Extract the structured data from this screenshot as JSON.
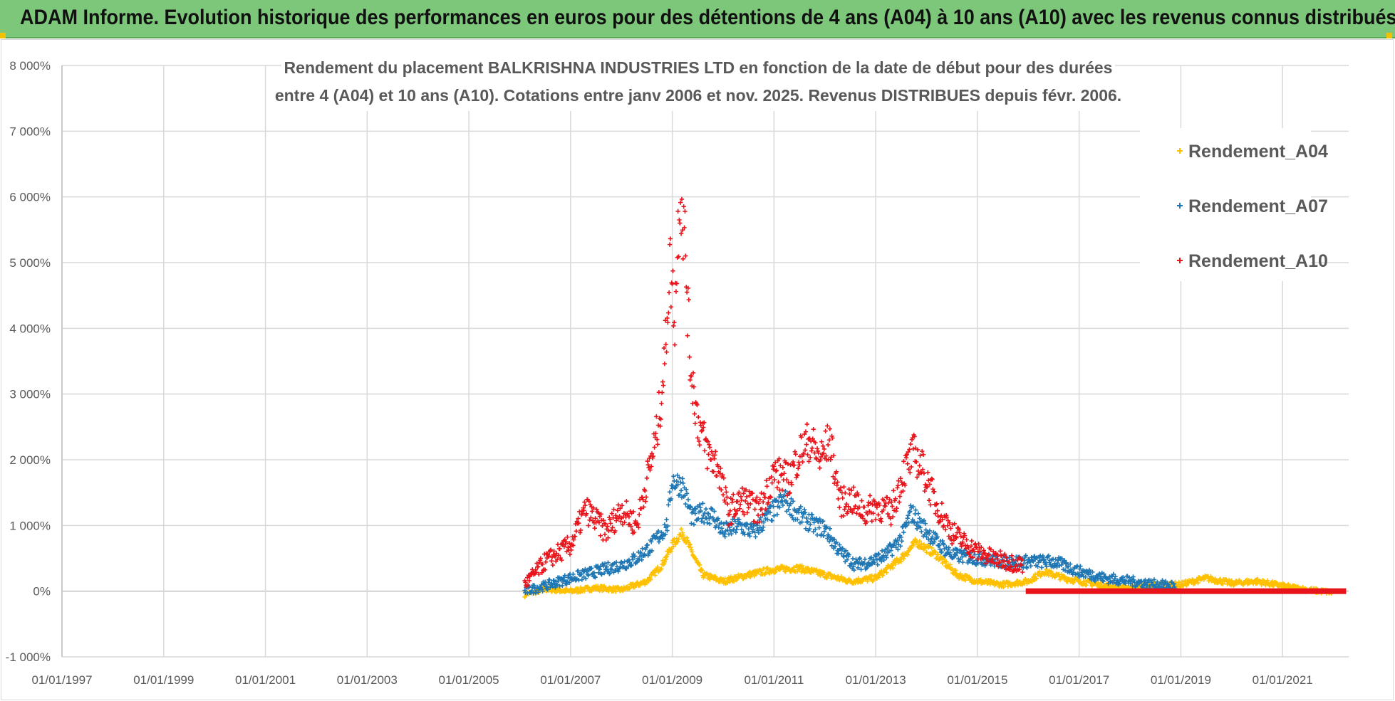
{
  "header": {
    "title": "ADAM Informe. Evolution historique des performances en euros pour des détentions de 4 ans (A04) à 10 ans (A10) avec les revenus connus distribués"
  },
  "chart_data": {
    "type": "scatter",
    "title_line1": "Rendement du placement BALKRISHNA INDUSTRIES LTD en fonction de la date de début pour des durées",
    "title_line2": "entre 4 (A04) et 10 ans (A10). Cotations entre janv 2006 et nov. 2025. Revenus DISTRIBUES depuis févr. 2006.",
    "xlabel": "",
    "ylabel": "",
    "xlim": [
      1997.0,
      2022.3
    ],
    "ylim": [
      -1000,
      8000
    ],
    "y_ticks": [
      -1000,
      0,
      1000,
      2000,
      3000,
      4000,
      5000,
      6000,
      7000,
      8000
    ],
    "y_tick_labels": [
      "-1 000%",
      "0%",
      "1 000%",
      "2 000%",
      "3 000%",
      "4 000%",
      "5 000%",
      "6 000%",
      "7 000%",
      "8 000%"
    ],
    "x_ticks": [
      1997,
      1999,
      2001,
      2003,
      2005,
      2007,
      2009,
      2011,
      2013,
      2015,
      2017,
      2019,
      2021
    ],
    "x_tick_labels": [
      "01/01/1997",
      "01/01/1999",
      "01/01/2001",
      "01/01/2003",
      "01/01/2005",
      "01/01/2007",
      "01/01/2009",
      "01/01/2011",
      "01/01/2013",
      "01/01/2015",
      "01/01/2017",
      "01/01/2019",
      "01/01/2021"
    ],
    "grid": true,
    "legend_position": "top-right",
    "marker": "+",
    "series": [
      {
        "name": "Rendement_A04",
        "color": "#ffc000",
        "x": [
          2006.1,
          2006.5,
          2007.0,
          2007.5,
          2008.0,
          2008.5,
          2008.8,
          2009.0,
          2009.2,
          2009.35,
          2009.6,
          2010.0,
          2010.5,
          2011.0,
          2011.5,
          2012.0,
          2012.5,
          2013.0,
          2013.5,
          2013.8,
          2014.2,
          2014.6,
          2015.0,
          2015.5,
          2016.0,
          2016.3,
          2016.7,
          2017.0,
          2017.5,
          2018.0,
          2018.5,
          2019.0,
          2019.5,
          2020.0,
          2020.5,
          2021.0,
          2021.5,
          2022.0
        ],
        "y": [
          -50,
          30,
          0,
          50,
          20,
          150,
          400,
          700,
          900,
          650,
          250,
          150,
          250,
          330,
          350,
          250,
          150,
          200,
          500,
          750,
          550,
          250,
          150,
          100,
          150,
          300,
          200,
          150,
          80,
          50,
          100,
          100,
          200,
          120,
          150,
          80,
          20,
          -20
        ],
        "spread": 60
      },
      {
        "name": "Rendement_A07",
        "color": "#1f77b4",
        "x": [
          2006.1,
          2006.5,
          2007.0,
          2007.5,
          2008.0,
          2008.3,
          2008.6,
          2008.9,
          2009.0,
          2009.2,
          2009.4,
          2009.6,
          2009.8,
          2010.0,
          2010.3,
          2010.6,
          2010.9,
          2011.2,
          2011.5,
          2011.8,
          2012.0,
          2012.3,
          2012.6,
          2012.9,
          2013.2,
          2013.5,
          2013.7,
          2013.9,
          2014.2,
          2014.5,
          2015.0,
          2015.5,
          2016.0,
          2016.5,
          2017.0,
          2017.5,
          2018.0,
          2018.5,
          2018.9
        ],
        "y": [
          0,
          80,
          200,
          300,
          400,
          500,
          700,
          1000,
          1700,
          1600,
          1100,
          1200,
          1150,
          900,
          1000,
          900,
          1150,
          1400,
          1150,
          1000,
          950,
          600,
          400,
          450,
          550,
          800,
          1200,
          1000,
          750,
          550,
          500,
          450,
          450,
          450,
          300,
          200,
          150,
          100,
          80
        ],
        "spread": 110
      },
      {
        "name": "Rendement_A10",
        "color": "#e8141b",
        "x": [
          2006.1,
          2006.5,
          2007.0,
          2007.3,
          2007.7,
          2008.0,
          2008.3,
          2008.5,
          2008.7,
          2008.85,
          2008.95,
          2009.05,
          2009.15,
          2009.25,
          2009.35,
          2009.5,
          2009.7,
          2009.9,
          2010.1,
          2010.4,
          2010.7,
          2011.0,
          2011.3,
          2011.5,
          2011.7,
          2011.9,
          2012.1,
          2012.3,
          2012.5,
          2012.8,
          2013.0,
          2013.3,
          2013.55,
          2013.75,
          2013.9,
          2014.2,
          2014.5,
          2014.8,
          2015.0,
          2015.3,
          2015.6,
          2015.9
        ],
        "y": [
          100,
          450,
          700,
          1250,
          900,
          1250,
          1000,
          1700,
          2400,
          3500,
          5000,
          4200,
          6200,
          5300,
          3500,
          2600,
          2100,
          1900,
          1200,
          1400,
          1200,
          1800,
          1700,
          2100,
          2300,
          2000,
          2300,
          1350,
          1400,
          1200,
          1300,
          1200,
          1800,
          2100,
          1900,
          1300,
          900,
          700,
          600,
          500,
          450,
          400
        ],
        "spread": 150
      }
    ],
    "flat_segment": {
      "series": "Rendement_A10",
      "x_start": 2015.95,
      "x_end": 2022.25,
      "y": 0
    }
  }
}
